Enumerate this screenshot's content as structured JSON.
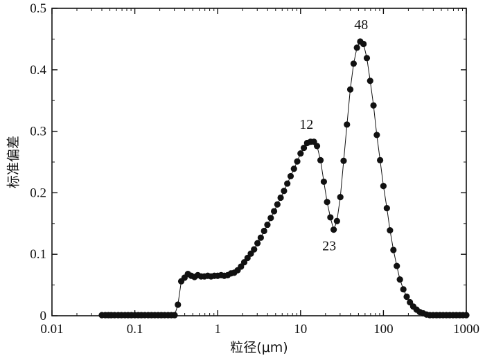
{
  "chart_data": {
    "type": "scatter",
    "xlabel": "粒径(μm)",
    "ylabel": "标准偏差",
    "xscale": "log",
    "xlim": [
      0.01,
      1000
    ],
    "ylim": [
      0,
      0.5
    ],
    "xticks": [
      0.01,
      0.1,
      1,
      10,
      100,
      1000
    ],
    "xtick_labels": [
      "0.01",
      "0.1",
      "1",
      "10",
      "100",
      "1000"
    ],
    "yticks": [
      0,
      0.1,
      0.2,
      0.3,
      0.4,
      0.5
    ],
    "ytick_labels": [
      "0",
      "0.1",
      "0.2",
      "0.3",
      "0.4",
      "0.5"
    ],
    "grid": false,
    "legend": "none",
    "marker_color": "#111111",
    "annotations": [
      {
        "text": "12",
        "x": 12,
        "y": 0.284
      },
      {
        "text": "23",
        "x": 23,
        "y": 0.14
      },
      {
        "text": "48",
        "x": 48,
        "y": 0.446
      }
    ],
    "series": [
      {
        "x": [
          0.04,
          0.044,
          0.048,
          0.052,
          0.057,
          0.063,
          0.069,
          0.076,
          0.083,
          0.091,
          0.1,
          0.11,
          0.12,
          0.132,
          0.145,
          0.159,
          0.174,
          0.191,
          0.209,
          0.229,
          0.252,
          0.276,
          0.302,
          0.331,
          0.363,
          0.398,
          0.437,
          0.479,
          0.525,
          0.575,
          0.631,
          0.692,
          0.759,
          0.832,
          0.912,
          1.0,
          1.1,
          1.2,
          1.32,
          1.45,
          1.58,
          1.74,
          1.91,
          2.09,
          2.29,
          2.51,
          2.75,
          3.02,
          3.31,
          3.63,
          3.98,
          4.37,
          4.79,
          5.25,
          5.75,
          6.31,
          6.92,
          7.59,
          8.32,
          9.12,
          10.0,
          10.96,
          12.0,
          13.2,
          14.5,
          15.8,
          17.4,
          19.1,
          20.9,
          22.9,
          25.1,
          27.5,
          30.2,
          33.1,
          36.3,
          39.8,
          43.7,
          47.9,
          52.5,
          57.5,
          63.1,
          69.2,
          75.9,
          83.2,
          91.2,
          100,
          110,
          120,
          132,
          145,
          158,
          174,
          191,
          209,
          229,
          251,
          275,
          302,
          331,
          363,
          398,
          437,
          479,
          525,
          575,
          631,
          692,
          759,
          832,
          912,
          1000
        ],
        "y": [
          0.001,
          0.001,
          0.001,
          0.001,
          0.001,
          0.001,
          0.001,
          0.001,
          0.001,
          0.001,
          0.001,
          0.001,
          0.001,
          0.001,
          0.001,
          0.001,
          0.001,
          0.001,
          0.001,
          0.001,
          0.001,
          0.001,
          0.001,
          0.018,
          0.056,
          0.062,
          0.068,
          0.065,
          0.063,
          0.066,
          0.064,
          0.064,
          0.065,
          0.064,
          0.065,
          0.065,
          0.066,
          0.065,
          0.066,
          0.069,
          0.07,
          0.074,
          0.08,
          0.087,
          0.094,
          0.101,
          0.108,
          0.118,
          0.127,
          0.138,
          0.148,
          0.159,
          0.17,
          0.181,
          0.192,
          0.203,
          0.215,
          0.227,
          0.239,
          0.251,
          0.264,
          0.273,
          0.281,
          0.283,
          0.283,
          0.276,
          0.253,
          0.218,
          0.185,
          0.16,
          0.14,
          0.154,
          0.193,
          0.252,
          0.311,
          0.368,
          0.41,
          0.436,
          0.446,
          0.442,
          0.419,
          0.382,
          0.342,
          0.294,
          0.253,
          0.211,
          0.175,
          0.139,
          0.107,
          0.081,
          0.059,
          0.043,
          0.031,
          0.022,
          0.015,
          0.01,
          0.006,
          0.004,
          0.002,
          0.001,
          0.001,
          0.001,
          0.001,
          0.001,
          0.001,
          0.001,
          0.001,
          0.001,
          0.001,
          0.001,
          0.001
        ]
      }
    ]
  }
}
